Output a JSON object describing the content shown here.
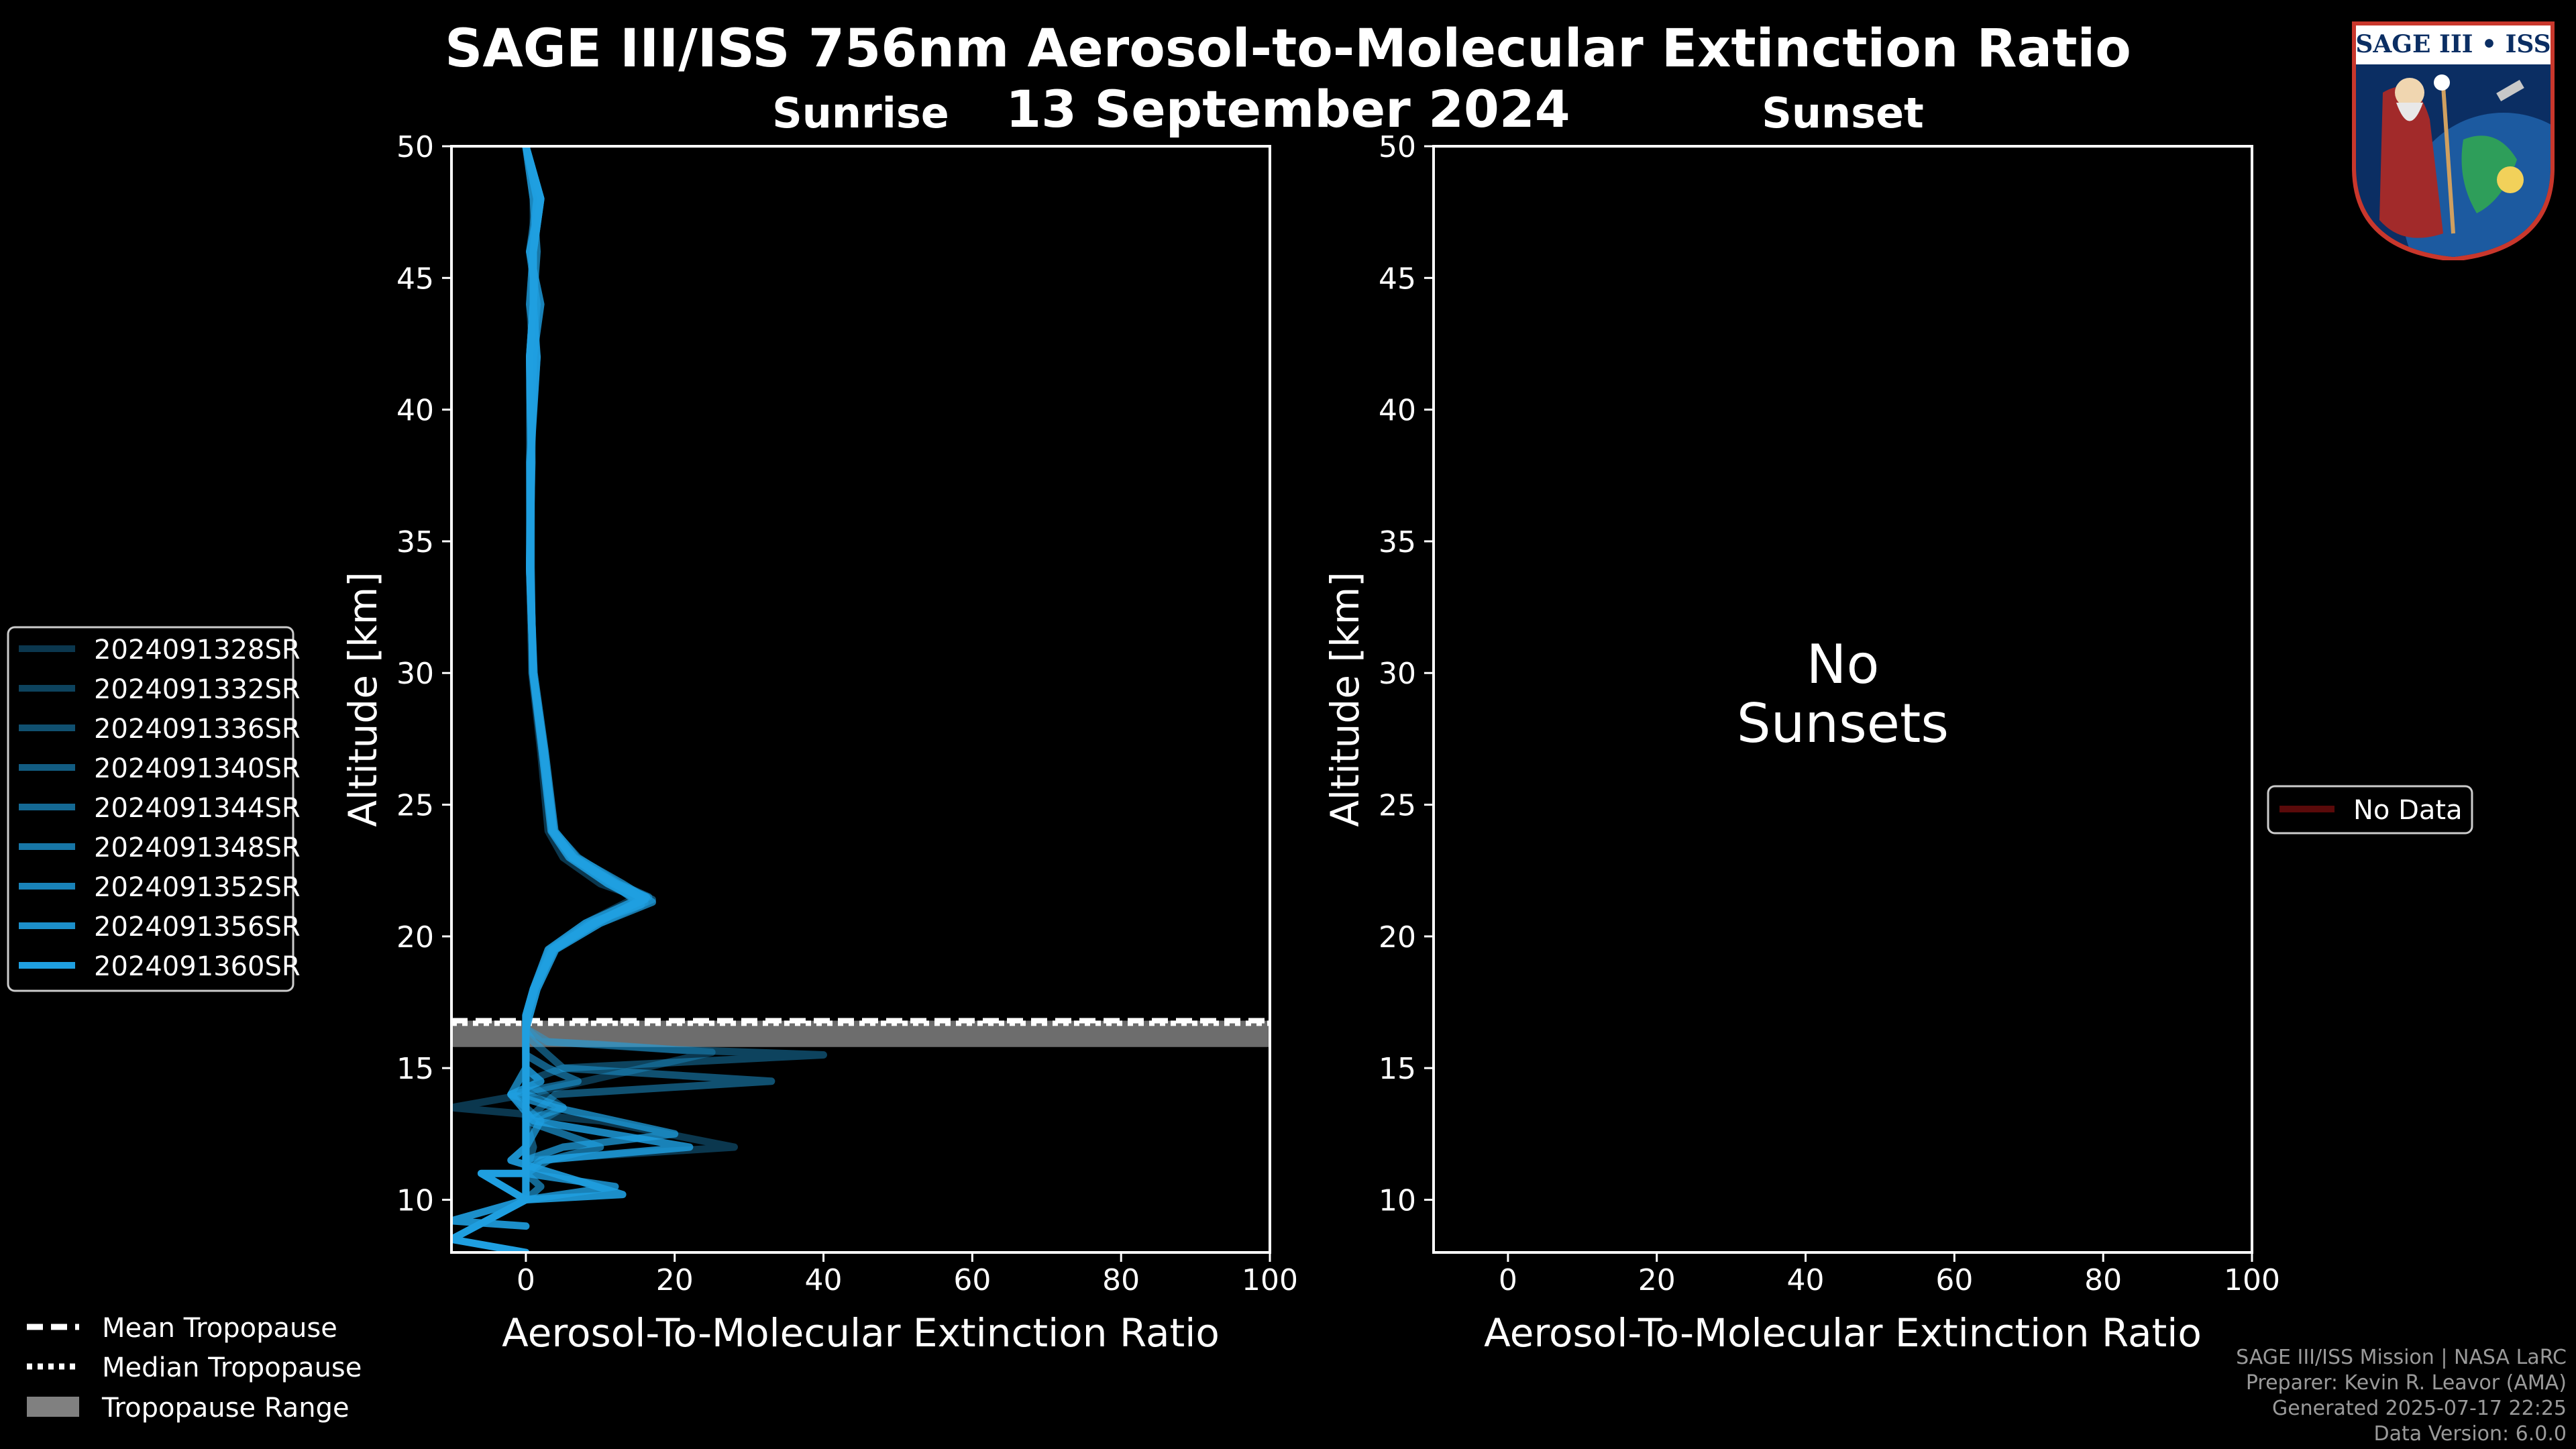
{
  "title": "SAGE III/ISS 756nm Aerosol-to-Molecular Extinction Ratio",
  "date": "13 September 2024",
  "logo": {
    "name": "SAGE III • ISS"
  },
  "colors": {
    "background": "#000000",
    "series": "#1f9fe0",
    "tropopause_range": "#808080",
    "no_data": "#5a0a0a"
  },
  "chart_data": [
    {
      "type": "line",
      "title": "Sunrise",
      "xlabel": "Aerosol-To-Molecular Extinction Ratio",
      "ylabel": "Altitude [km]",
      "xlim": [
        -10,
        100
      ],
      "ylim": [
        8,
        50
      ],
      "xticks": [
        "0",
        "20",
        "40",
        "60",
        "80",
        "100"
      ],
      "yticks": [
        "10",
        "15",
        "20",
        "25",
        "30",
        "35",
        "40",
        "45",
        "50"
      ],
      "tropopause": {
        "mean": 16.8,
        "median": 16.7,
        "range": [
          15.8,
          16.8
        ]
      },
      "series": [
        {
          "name": "2024091328SR",
          "alpha": 0.35,
          "points": [
            [
              0,
              50
            ],
            [
              2,
              48
            ],
            [
              0.5,
              46
            ],
            [
              1.5,
              44
            ],
            [
              0.5,
              42
            ],
            [
              0.5,
              38
            ],
            [
              0.5,
              34
            ],
            [
              0.8,
              30
            ],
            [
              2,
              27
            ],
            [
              3,
              24
            ],
            [
              5,
              23
            ],
            [
              10,
              22
            ],
            [
              15,
              21.5
            ],
            [
              8,
              20.5
            ],
            [
              3,
              19.5
            ],
            [
              1,
              18
            ],
            [
              0,
              17
            ],
            [
              0,
              16.5
            ],
            [
              2,
              16
            ],
            [
              10,
              15.9
            ],
            [
              25,
              15.6
            ],
            [
              8,
              14.5
            ],
            [
              0,
              14
            ],
            [
              -10,
              13.5
            ],
            [
              10,
              13
            ],
            [
              28,
              12
            ],
            [
              0,
              11.5
            ],
            [
              0,
              11
            ],
            [
              0,
              10
            ]
          ]
        },
        {
          "name": "2024091332SR",
          "alpha": 0.42,
          "points": [
            [
              0,
              50
            ],
            [
              1,
              48
            ],
            [
              1,
              46
            ],
            [
              0.5,
              44
            ],
            [
              1,
              42
            ],
            [
              0.8,
              38
            ],
            [
              0.5,
              34
            ],
            [
              1,
              30
            ],
            [
              2.2,
              27
            ],
            [
              3.5,
              24
            ],
            [
              6,
              23
            ],
            [
              11,
              22
            ],
            [
              16,
              21.3
            ],
            [
              9,
              20.5
            ],
            [
              3.5,
              19.5
            ],
            [
              1.5,
              18
            ],
            [
              0.5,
              17
            ],
            [
              0,
              16.5
            ],
            [
              3,
              16
            ],
            [
              20,
              15.7
            ],
            [
              40,
              15.5
            ],
            [
              5,
              15
            ],
            [
              0,
              14.5
            ],
            [
              5,
              13.5
            ],
            [
              2,
              13
            ],
            [
              0,
              12
            ],
            [
              0,
              11
            ],
            [
              0,
              10
            ]
          ]
        },
        {
          "name": "2024091336SR",
          "alpha": 0.5,
          "points": [
            [
              0,
              50
            ],
            [
              2,
              48
            ],
            [
              1,
              46
            ],
            [
              1,
              44
            ],
            [
              0.5,
              42
            ],
            [
              0.7,
              38
            ],
            [
              0.6,
              34
            ],
            [
              1,
              30
            ],
            [
              2.3,
              27
            ],
            [
              3.6,
              24
            ],
            [
              6.5,
              23
            ],
            [
              12,
              22
            ],
            [
              17,
              21.4
            ],
            [
              10,
              20.5
            ],
            [
              4,
              19.5
            ],
            [
              1.5,
              18
            ],
            [
              0.5,
              17
            ],
            [
              0,
              16.4
            ],
            [
              1,
              16
            ],
            [
              5,
              15
            ],
            [
              33,
              14.5
            ],
            [
              4,
              14
            ],
            [
              0,
              13
            ],
            [
              1,
              12
            ],
            [
              0,
              11
            ],
            [
              0,
              10
            ]
          ]
        },
        {
          "name": "2024091340SR",
          "alpha": 0.58,
          "points": [
            [
              0,
              50
            ],
            [
              1.5,
              48
            ],
            [
              0.5,
              46
            ],
            [
              1.5,
              44
            ],
            [
              1,
              42
            ],
            [
              0.6,
              38
            ],
            [
              0.5,
              34
            ],
            [
              1,
              30
            ],
            [
              2.5,
              27
            ],
            [
              3.8,
              24
            ],
            [
              7,
              23
            ],
            [
              12.5,
              22
            ],
            [
              16.5,
              21.5
            ],
            [
              9,
              20.5
            ],
            [
              3.5,
              19.5
            ],
            [
              1,
              18
            ],
            [
              0,
              17
            ],
            [
              0,
              16.5
            ],
            [
              0,
              15.5
            ],
            [
              3,
              15
            ],
            [
              7,
              14.5
            ],
            [
              -2,
              14
            ],
            [
              2,
              13
            ],
            [
              0,
              12
            ],
            [
              0,
              11
            ],
            [
              0,
              10
            ]
          ]
        },
        {
          "name": "2024091344SR",
          "alpha": 0.66,
          "points": [
            [
              0,
              50
            ],
            [
              2,
              48
            ],
            [
              1,
              46
            ],
            [
              0.5,
              44
            ],
            [
              1.5,
              42
            ],
            [
              0.5,
              38
            ],
            [
              0.6,
              34
            ],
            [
              1,
              30
            ],
            [
              2.4,
              27
            ],
            [
              3.7,
              24
            ],
            [
              6.2,
              23
            ],
            [
              11.5,
              22
            ],
            [
              15.5,
              21.2
            ],
            [
              8.5,
              20.5
            ],
            [
              3.2,
              19.5
            ],
            [
              1,
              18
            ],
            [
              0,
              17
            ],
            [
              0,
              16.5
            ],
            [
              0,
              15.5
            ],
            [
              0,
              15
            ],
            [
              0,
              14
            ],
            [
              5,
              13.5
            ],
            [
              0,
              13
            ],
            [
              5,
              12.5
            ],
            [
              10,
              12
            ],
            [
              3,
              11.5
            ],
            [
              0,
              11
            ],
            [
              2,
              10.5
            ],
            [
              0,
              10
            ]
          ]
        },
        {
          "name": "2024091348SR",
          "alpha": 0.74,
          "points": [
            [
              0,
              50
            ],
            [
              1,
              48
            ],
            [
              1.5,
              46
            ],
            [
              1,
              44
            ],
            [
              0.5,
              42
            ],
            [
              0.8,
              38
            ],
            [
              0.5,
              34
            ],
            [
              1.1,
              30
            ],
            [
              2.6,
              27
            ],
            [
              3.9,
              24
            ],
            [
              6.8,
              23
            ],
            [
              13,
              22
            ],
            [
              17,
              21.3
            ],
            [
              10,
              20.5
            ],
            [
              4,
              19.5
            ],
            [
              1.5,
              18
            ],
            [
              0.5,
              17
            ],
            [
              0,
              16.5
            ],
            [
              0,
              15.5
            ],
            [
              0,
              15
            ],
            [
              -2,
              14
            ],
            [
              4,
              13.5
            ],
            [
              12,
              13
            ],
            [
              20,
              12.5
            ],
            [
              5,
              12
            ],
            [
              0,
              11.5
            ],
            [
              0,
              11
            ],
            [
              0,
              10
            ]
          ]
        },
        {
          "name": "2024091352SR",
          "alpha": 0.82,
          "points": [
            [
              0,
              50
            ],
            [
              2,
              48
            ],
            [
              0.5,
              46
            ],
            [
              2,
              44
            ],
            [
              1,
              42
            ],
            [
              0.7,
              38
            ],
            [
              0.7,
              34
            ],
            [
              0.9,
              30
            ],
            [
              2.2,
              27
            ],
            [
              3.4,
              24
            ],
            [
              5.8,
              23
            ],
            [
              11,
              22
            ],
            [
              15,
              21.4
            ],
            [
              8,
              20.5
            ],
            [
              3,
              19.5
            ],
            [
              1,
              18
            ],
            [
              0,
              17
            ],
            [
              0,
              16.5
            ],
            [
              0,
              15.5
            ],
            [
              0,
              15
            ],
            [
              2,
              14.5
            ],
            [
              -2,
              14
            ],
            [
              1,
              13
            ],
            [
              22,
              12
            ],
            [
              2,
              11.5
            ],
            [
              0,
              11
            ],
            [
              12,
              10.5
            ],
            [
              0,
              10
            ]
          ]
        },
        {
          "name": "2024091356SR",
          "alpha": 0.9,
          "points": [
            [
              0,
              50
            ],
            [
              1.5,
              48
            ],
            [
              1,
              46
            ],
            [
              1,
              44
            ],
            [
              1.5,
              42
            ],
            [
              0.6,
              38
            ],
            [
              0.6,
              34
            ],
            [
              1,
              30
            ],
            [
              2.5,
              27
            ],
            [
              3.7,
              24
            ],
            [
              6.4,
              23
            ],
            [
              12.2,
              22
            ],
            [
              16.2,
              21.5
            ],
            [
              9.5,
              20.5
            ],
            [
              3.8,
              19.5
            ],
            [
              1.2,
              18
            ],
            [
              0.2,
              17
            ],
            [
              0,
              16.5
            ],
            [
              0,
              15.5
            ],
            [
              0,
              15
            ],
            [
              0,
              14
            ],
            [
              0,
              13
            ],
            [
              0,
              12
            ],
            [
              -2,
              11.5
            ],
            [
              13,
              10.2
            ],
            [
              0,
              10
            ],
            [
              -10,
              9.2
            ],
            [
              0,
              9
            ]
          ]
        },
        {
          "name": "2024091360SR",
          "alpha": 1.0,
          "points": [
            [
              0,
              50
            ],
            [
              2,
              48
            ],
            [
              1,
              46
            ],
            [
              1,
              44
            ],
            [
              0.5,
              42
            ],
            [
              0.7,
              38
            ],
            [
              0.5,
              34
            ],
            [
              1,
              30
            ],
            [
              2.4,
              27
            ],
            [
              3.6,
              24
            ],
            [
              6.2,
              23
            ],
            [
              11.8,
              22
            ],
            [
              16,
              21.4
            ],
            [
              9,
              20.5
            ],
            [
              3.6,
              19.5
            ],
            [
              1.2,
              18
            ],
            [
              0.2,
              17
            ],
            [
              0,
              16.5
            ],
            [
              0,
              15.5
            ],
            [
              0,
              15
            ],
            [
              0,
              14
            ],
            [
              0,
              13
            ],
            [
              0,
              12
            ],
            [
              0,
              11
            ],
            [
              -6,
              11
            ],
            [
              0,
              10
            ],
            [
              -10,
              8.5
            ],
            [
              0,
              8
            ]
          ]
        }
      ]
    },
    {
      "type": "line",
      "title": "Sunset",
      "xlabel": "Aerosol-To-Molecular Extinction Ratio",
      "ylabel": "Altitude [km]",
      "xlim": [
        -10,
        100
      ],
      "ylim": [
        8,
        50
      ],
      "xticks": [
        "0",
        "20",
        "40",
        "60",
        "80",
        "100"
      ],
      "yticks": [
        "10",
        "15",
        "20",
        "25",
        "30",
        "35",
        "40",
        "45",
        "50"
      ],
      "annotation": [
        "No",
        "Sunsets"
      ],
      "series": []
    }
  ],
  "legend_left": {
    "items": [
      "2024091328SR",
      "2024091332SR",
      "2024091336SR",
      "2024091340SR",
      "2024091344SR",
      "2024091348SR",
      "2024091352SR",
      "2024091356SR",
      "2024091360SR"
    ]
  },
  "legend_tropopause": {
    "mean": "Mean Tropopause",
    "median": "Median Tropopause",
    "range": "Tropopause Range"
  },
  "legend_right": {
    "no_data": "No Data"
  },
  "footer": {
    "line1": "SAGE III/ISS Mission | NASA LaRC",
    "line2": "Preparer: Kevin R. Leavor (AMA)",
    "line3": "Generated 2025-07-17 22:25",
    "line4": "Data Version: 6.0.0"
  }
}
